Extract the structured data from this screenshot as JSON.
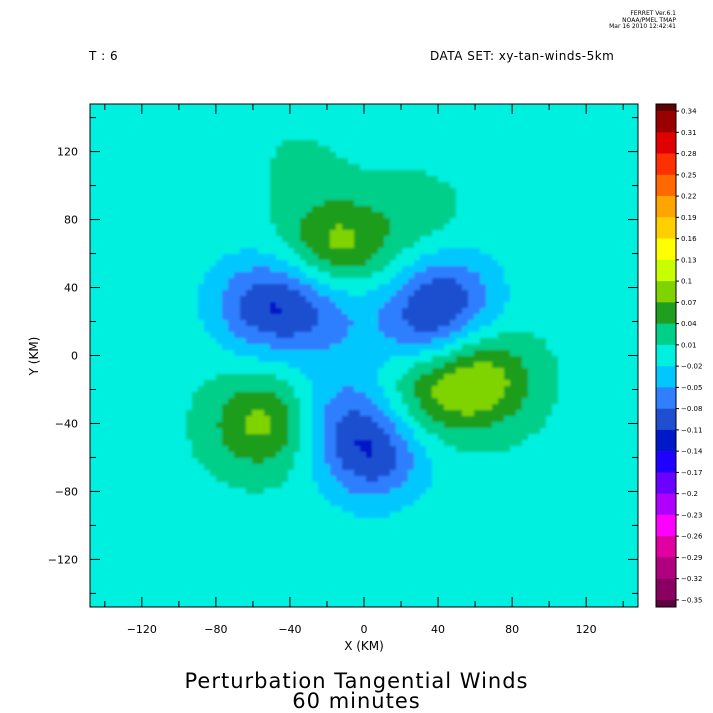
{
  "header": {
    "time_label": "T : 6",
    "dataset_label": "DATA SET: xy-tan-winds-5km",
    "stamp": [
      "FERRET  Ver.6.1",
      "NOAA/PMEL TMAP",
      "Mar 16 2010 12:42:41"
    ]
  },
  "title_line1": "Perturbation Tangential Winds",
  "title_line2": "60 minutes",
  "chart_data": {
    "type": "heatmap",
    "xlabel": "X (KM)",
    "ylabel": "Y (KM)",
    "xlim": [
      -148,
      148
    ],
    "ylim": [
      -148,
      148
    ],
    "x_ticks": [
      -120,
      -80,
      -40,
      0,
      40,
      80,
      120
    ],
    "y_ticks": [
      120,
      80,
      40,
      0,
      -40,
      -80,
      -120
    ],
    "x_tick_labels": [
      "−120",
      "−80",
      "−40",
      "0",
      "40",
      "80",
      "120"
    ],
    "y_tick_labels": [
      "120",
      "80",
      "40",
      "0",
      "−40",
      "−80",
      "−120"
    ],
    "background_value": 0.0,
    "positive_lobes": [
      {
        "x": -15,
        "y": 65,
        "value": 0.08
      },
      {
        "x": 65,
        "y": -15,
        "value": 0.08
      },
      {
        "x": 15,
        "y": -65,
        "value": 0.0
      },
      {
        "x": -55,
        "y": -40,
        "value": 0.08
      },
      {
        "x": 35,
        "y": -20,
        "value": 0.06
      },
      {
        "x": 28,
        "y": 80,
        "value": 0.025
      },
      {
        "x": -35,
        "y": 115,
        "value": 0.012
      }
    ],
    "negative_lobes": [
      {
        "x": -55,
        "y": 30,
        "value": -0.09
      },
      {
        "x": 45,
        "y": 35,
        "value": -0.08
      },
      {
        "x": 5,
        "y": -60,
        "value": -0.09
      },
      {
        "x": -25,
        "y": 25,
        "value": -0.06
      },
      {
        "x": 30,
        "y": 15,
        "value": -0.06
      },
      {
        "x": -10,
        "y": -35,
        "value": -0.06
      }
    ],
    "colorbar": {
      "labels": [
        "0.34",
        "0.31",
        "0.28",
        "0.25",
        "0.22",
        "0.19",
        "0.16",
        "0.13",
        "0.1",
        "0.07",
        "0.04",
        "0.01",
        "−0.02",
        "−0.05",
        "−0.08",
        "−0.11",
        "−0.14",
        "−0.17",
        "−0.2",
        "−0.23",
        "−0.26",
        "−0.29",
        "−0.32",
        "−0.35"
      ],
      "boundaries_top_to_bottom": [
        0.35,
        0.34,
        0.31,
        0.28,
        0.25,
        0.22,
        0.19,
        0.16,
        0.13,
        0.1,
        0.07,
        0.04,
        0.01,
        -0.02,
        -0.05,
        -0.08,
        -0.11,
        -0.14,
        -0.17,
        -0.2,
        -0.23,
        -0.26,
        -0.29,
        -0.32,
        -0.35,
        -0.36
      ],
      "colors_top_to_bottom": [
        "#600000",
        "#9a0000",
        "#e00000",
        "#ff3000",
        "#ff6a00",
        "#ffa500",
        "#ffd000",
        "#ffff00",
        "#c8ff00",
        "#7fd400",
        "#1f9e1f",
        "#00cf8a",
        "#00f0e0",
        "#00c8ff",
        "#2f7fff",
        "#1f4fd0",
        "#0018c8",
        "#2000ff",
        "#6a00ff",
        "#b000ff",
        "#ff00ff",
        "#e000a0",
        "#b00080",
        "#8a0060",
        "#600040"
      ]
    }
  }
}
